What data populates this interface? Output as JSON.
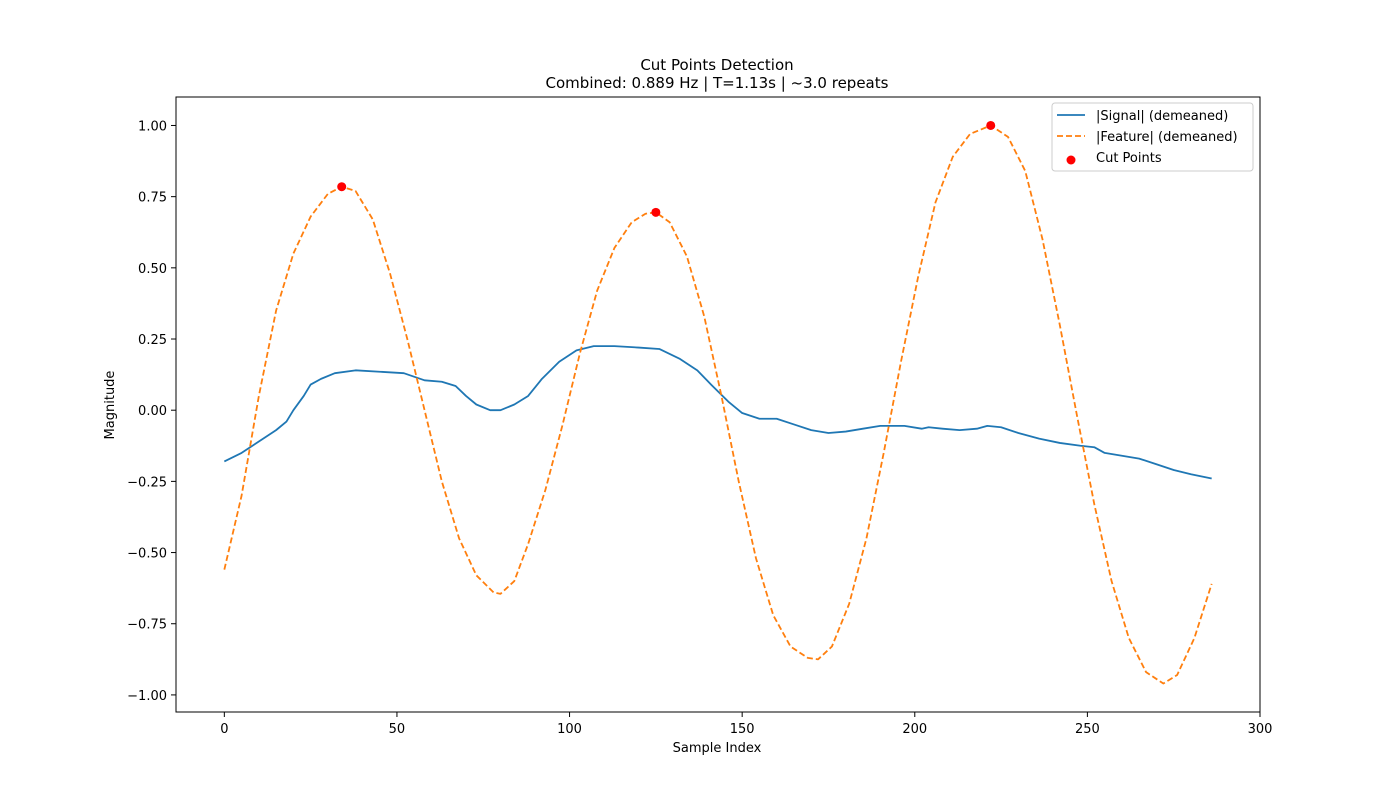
{
  "chart_data": {
    "type": "line",
    "title": "Cut Points Detection",
    "subtitle": "Combined: 0.889 Hz | T=1.13s | ~3.0 repeats",
    "xlabel": "Sample Index",
    "ylabel": "Magnitude",
    "xlim": [
      -14,
      300
    ],
    "ylim": [
      -1.06,
      1.1
    ],
    "xticks": [
      0,
      50,
      100,
      150,
      200,
      250,
      300
    ],
    "xtick_labels": [
      "0",
      "50",
      "100",
      "150",
      "200",
      "250",
      "300"
    ],
    "yticks": [
      1.0,
      0.75,
      0.5,
      0.25,
      0.0,
      -0.25,
      -0.5,
      -0.75,
      -1.0
    ],
    "ytick_labels": [
      "1.00",
      "0.75",
      "0.50",
      "0.25",
      "0.00",
      "−0.25",
      "−0.50",
      "−0.75",
      "−1.00"
    ],
    "grid": false,
    "legend_position": "top-right",
    "series": [
      {
        "name": "|Signal| (demeaned)",
        "style": "solid",
        "color": "#1f77b4",
        "points": [
          [
            0,
            -0.18
          ],
          [
            5,
            -0.15
          ],
          [
            10,
            -0.11
          ],
          [
            15,
            -0.07
          ],
          [
            18,
            -0.04
          ],
          [
            20,
            0.0
          ],
          [
            23,
            0.05
          ],
          [
            25,
            0.09
          ],
          [
            28,
            0.11
          ],
          [
            32,
            0.13
          ],
          [
            38,
            0.14
          ],
          [
            45,
            0.135
          ],
          [
            52,
            0.13
          ],
          [
            58,
            0.105
          ],
          [
            63,
            0.1
          ],
          [
            67,
            0.085
          ],
          [
            70,
            0.05
          ],
          [
            73,
            0.02
          ],
          [
            77,
            0.0
          ],
          [
            80,
            0.0
          ],
          [
            84,
            0.02
          ],
          [
            88,
            0.05
          ],
          [
            92,
            0.11
          ],
          [
            97,
            0.17
          ],
          [
            102,
            0.21
          ],
          [
            107,
            0.225
          ],
          [
            113,
            0.225
          ],
          [
            120,
            0.22
          ],
          [
            126,
            0.215
          ],
          [
            132,
            0.18
          ],
          [
            137,
            0.14
          ],
          [
            141,
            0.09
          ],
          [
            146,
            0.03
          ],
          [
            150,
            -0.01
          ],
          [
            155,
            -0.03
          ],
          [
            160,
            -0.03
          ],
          [
            165,
            -0.05
          ],
          [
            170,
            -0.07
          ],
          [
            175,
            -0.08
          ],
          [
            180,
            -0.075
          ],
          [
            185,
            -0.065
          ],
          [
            190,
            -0.055
          ],
          [
            197,
            -0.055
          ],
          [
            202,
            -0.065
          ],
          [
            204,
            -0.06
          ],
          [
            208,
            -0.065
          ],
          [
            213,
            -0.07
          ],
          [
            218,
            -0.065
          ],
          [
            221,
            -0.055
          ],
          [
            225,
            -0.06
          ],
          [
            230,
            -0.08
          ],
          [
            236,
            -0.1
          ],
          [
            242,
            -0.115
          ],
          [
            248,
            -0.125
          ],
          [
            252,
            -0.13
          ],
          [
            255,
            -0.15
          ],
          [
            260,
            -0.16
          ],
          [
            265,
            -0.17
          ],
          [
            270,
            -0.19
          ],
          [
            275,
            -0.21
          ],
          [
            280,
            -0.225
          ],
          [
            286,
            -0.24
          ]
        ]
      },
      {
        "name": "|Feature| (demeaned)",
        "style": "dashed",
        "color": "#ff7f0e",
        "points": [
          [
            0,
            -0.56
          ],
          [
            5,
            -0.3
          ],
          [
            10,
            0.05
          ],
          [
            15,
            0.35
          ],
          [
            20,
            0.55
          ],
          [
            25,
            0.68
          ],
          [
            30,
            0.76
          ],
          [
            34,
            0.785
          ],
          [
            38,
            0.77
          ],
          [
            43,
            0.67
          ],
          [
            48,
            0.48
          ],
          [
            53,
            0.25
          ],
          [
            58,
            0.0
          ],
          [
            63,
            -0.25
          ],
          [
            68,
            -0.45
          ],
          [
            73,
            -0.58
          ],
          [
            78,
            -0.64
          ],
          [
            80,
            -0.645
          ],
          [
            84,
            -0.6
          ],
          [
            88,
            -0.47
          ],
          [
            93,
            -0.28
          ],
          [
            98,
            -0.05
          ],
          [
            103,
            0.2
          ],
          [
            108,
            0.42
          ],
          [
            113,
            0.57
          ],
          [
            118,
            0.66
          ],
          [
            122,
            0.69
          ],
          [
            125,
            0.695
          ],
          [
            129,
            0.66
          ],
          [
            134,
            0.54
          ],
          [
            139,
            0.33
          ],
          [
            144,
            0.05
          ],
          [
            149,
            -0.25
          ],
          [
            154,
            -0.52
          ],
          [
            159,
            -0.72
          ],
          [
            164,
            -0.83
          ],
          [
            169,
            -0.87
          ],
          [
            172,
            -0.875
          ],
          [
            176,
            -0.83
          ],
          [
            181,
            -0.68
          ],
          [
            186,
            -0.45
          ],
          [
            191,
            -0.15
          ],
          [
            196,
            0.17
          ],
          [
            201,
            0.47
          ],
          [
            206,
            0.73
          ],
          [
            211,
            0.89
          ],
          [
            216,
            0.97
          ],
          [
            222,
            1.0
          ],
          [
            227,
            0.96
          ],
          [
            232,
            0.84
          ],
          [
            237,
            0.6
          ],
          [
            242,
            0.3
          ],
          [
            247,
            -0.02
          ],
          [
            252,
            -0.33
          ],
          [
            257,
            -0.6
          ],
          [
            262,
            -0.8
          ],
          [
            267,
            -0.92
          ],
          [
            272,
            -0.96
          ],
          [
            276,
            -0.93
          ],
          [
            281,
            -0.8
          ],
          [
            286,
            -0.61
          ]
        ]
      },
      {
        "name": "Cut Points",
        "style": "scatter",
        "color": "#ff0000",
        "points": [
          [
            34,
            0.785
          ],
          [
            125,
            0.695
          ],
          [
            222,
            1.0
          ]
        ]
      }
    ]
  }
}
